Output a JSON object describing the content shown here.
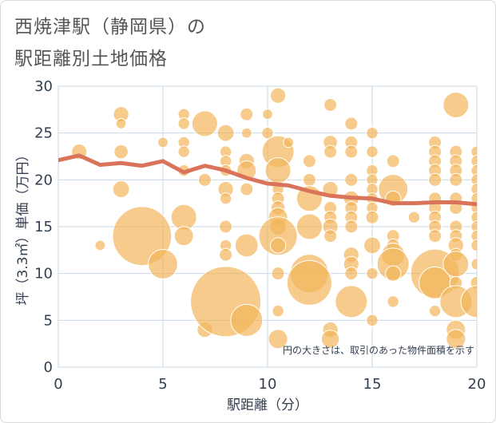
{
  "chart_data": {
    "type": "scatter",
    "title_line1": "西焼津駅（静岡県）の",
    "title_line2": "駅距離別土地価格",
    "xlabel": "駅距離（分）",
    "ylabel": "坪（3.3㎡）単価（万円）",
    "xlim": [
      0,
      20
    ],
    "ylim": [
      0,
      30
    ],
    "xticks": [
      0,
      5,
      10,
      15,
      20
    ],
    "yticks": [
      0,
      5,
      10,
      15,
      20,
      25,
      30
    ],
    "grid": true,
    "annotation": "円の大きさは、取引のあった物件面積を示す",
    "colors": {
      "bubble": "#f2b55a",
      "trend": "#d9735a",
      "grid": "#c9d8e6",
      "axis": "#333f50"
    },
    "points": [
      {
        "x": 1,
        "y": 23,
        "s": 1.2
      },
      {
        "x": 2,
        "y": 13,
        "s": 0.8
      },
      {
        "x": 3,
        "y": 27,
        "s": 1.2
      },
      {
        "x": 3,
        "y": 26,
        "s": 0.8
      },
      {
        "x": 3,
        "y": 23,
        "s": 1.1
      },
      {
        "x": 3,
        "y": 19,
        "s": 1.3
      },
      {
        "x": 4,
        "y": 14,
        "s": 4.6
      },
      {
        "x": 5,
        "y": 24,
        "s": 0.8
      },
      {
        "x": 5,
        "y": 11,
        "s": 2.3
      },
      {
        "x": 6,
        "y": 27,
        "s": 0.9
      },
      {
        "x": 6,
        "y": 26,
        "s": 0.9
      },
      {
        "x": 6,
        "y": 24,
        "s": 0.9
      },
      {
        "x": 6,
        "y": 23,
        "s": 0.9
      },
      {
        "x": 6,
        "y": 21,
        "s": 0.9
      },
      {
        "x": 6,
        "y": 16,
        "s": 2.0
      },
      {
        "x": 6,
        "y": 14,
        "s": 1.5
      },
      {
        "x": 7,
        "y": 26,
        "s": 2.0
      },
      {
        "x": 7,
        "y": 20,
        "s": 1.0
      },
      {
        "x": 7,
        "y": 4,
        "s": 1.2
      },
      {
        "x": 8,
        "y": 25,
        "s": 1.3
      },
      {
        "x": 8,
        "y": 23,
        "s": 0.9
      },
      {
        "x": 8,
        "y": 22,
        "s": 0.9
      },
      {
        "x": 8,
        "y": 21,
        "s": 0.9
      },
      {
        "x": 8,
        "y": 19,
        "s": 1.2
      },
      {
        "x": 8,
        "y": 18,
        "s": 0.9
      },
      {
        "x": 8,
        "y": 15,
        "s": 1.0
      },
      {
        "x": 8,
        "y": 13,
        "s": 0.9
      },
      {
        "x": 8,
        "y": 12,
        "s": 1.0
      },
      {
        "x": 8,
        "y": 7,
        "s": 5.5
      },
      {
        "x": 9,
        "y": 27,
        "s": 1.0
      },
      {
        "x": 9,
        "y": 25,
        "s": 0.8
      },
      {
        "x": 9,
        "y": 22,
        "s": 1.2
      },
      {
        "x": 9,
        "y": 21,
        "s": 1.5
      },
      {
        "x": 9,
        "y": 19,
        "s": 1.0
      },
      {
        "x": 9,
        "y": 13,
        "s": 1.8
      },
      {
        "x": 9,
        "y": 5,
        "s": 2.5
      },
      {
        "x": 10,
        "y": 27,
        "s": 0.8
      },
      {
        "x": 10,
        "y": 25,
        "s": 0.9
      },
      {
        "x": 10.5,
        "y": 29,
        "s": 1.2
      },
      {
        "x": 10.5,
        "y": 23,
        "s": 2.5
      },
      {
        "x": 10.5,
        "y": 21,
        "s": 2.0
      },
      {
        "x": 10.5,
        "y": 19,
        "s": 0.9
      },
      {
        "x": 10.5,
        "y": 18,
        "s": 1.0
      },
      {
        "x": 10.5,
        "y": 17,
        "s": 1.1
      },
      {
        "x": 10.5,
        "y": 16,
        "s": 1.5
      },
      {
        "x": 10.5,
        "y": 15,
        "s": 1.3
      },
      {
        "x": 10.5,
        "y": 14,
        "s": 3.0
      },
      {
        "x": 10.5,
        "y": 13,
        "s": 1.2
      },
      {
        "x": 10.5,
        "y": 10,
        "s": 1.0
      },
      {
        "x": 10.5,
        "y": 6,
        "s": 0.9
      },
      {
        "x": 10.5,
        "y": 3,
        "s": 1.5
      },
      {
        "x": 11,
        "y": 24,
        "s": 0.8
      },
      {
        "x": 12,
        "y": 22,
        "s": 1.0
      },
      {
        "x": 12,
        "y": 20,
        "s": 1.0
      },
      {
        "x": 12,
        "y": 18,
        "s": 2.0
      },
      {
        "x": 12,
        "y": 15,
        "s": 2.0
      },
      {
        "x": 12,
        "y": 10,
        "s": 3.0
      },
      {
        "x": 12,
        "y": 9,
        "s": 3.5
      },
      {
        "x": 13,
        "y": 28,
        "s": 1.0
      },
      {
        "x": 13,
        "y": 24,
        "s": 1.1
      },
      {
        "x": 13,
        "y": 23,
        "s": 1.0
      },
      {
        "x": 13,
        "y": 19,
        "s": 1.2
      },
      {
        "x": 13,
        "y": 17,
        "s": 1.0
      },
      {
        "x": 13,
        "y": 16,
        "s": 1.0
      },
      {
        "x": 13,
        "y": 15,
        "s": 1.2
      },
      {
        "x": 13,
        "y": 14,
        "s": 1.0
      },
      {
        "x": 13,
        "y": 4,
        "s": 1.2
      },
      {
        "x": 13,
        "y": 3,
        "s": 1.4
      },
      {
        "x": 14,
        "y": 26,
        "s": 1.0
      },
      {
        "x": 14,
        "y": 24,
        "s": 1.0
      },
      {
        "x": 14,
        "y": 23,
        "s": 1.0
      },
      {
        "x": 14,
        "y": 20,
        "s": 1.0
      },
      {
        "x": 14,
        "y": 18,
        "s": 1.2
      },
      {
        "x": 14,
        "y": 17,
        "s": 1.0
      },
      {
        "x": 14,
        "y": 16,
        "s": 1.0
      },
      {
        "x": 14,
        "y": 15,
        "s": 1.0
      },
      {
        "x": 14,
        "y": 12,
        "s": 1.2
      },
      {
        "x": 14,
        "y": 11,
        "s": 1.2
      },
      {
        "x": 14,
        "y": 10,
        "s": 1.0
      },
      {
        "x": 14,
        "y": 7,
        "s": 2.5
      },
      {
        "x": 15,
        "y": 25,
        "s": 0.9
      },
      {
        "x": 15,
        "y": 23,
        "s": 0.9
      },
      {
        "x": 15,
        "y": 21,
        "s": 0.9
      },
      {
        "x": 15,
        "y": 20,
        "s": 0.9
      },
      {
        "x": 15,
        "y": 19,
        "s": 0.9
      },
      {
        "x": 15,
        "y": 18,
        "s": 0.9
      },
      {
        "x": 15,
        "y": 17,
        "s": 0.9
      },
      {
        "x": 15,
        "y": 16,
        "s": 1.0
      },
      {
        "x": 15,
        "y": 13,
        "s": 1.3
      },
      {
        "x": 15,
        "y": 10,
        "s": 0.9
      },
      {
        "x": 15,
        "y": 5,
        "s": 0.9
      },
      {
        "x": 16,
        "y": 22,
        "s": 1.0
      },
      {
        "x": 16,
        "y": 19,
        "s": 2.3
      },
      {
        "x": 16,
        "y": 18,
        "s": 1.2
      },
      {
        "x": 16,
        "y": 14,
        "s": 1.0
      },
      {
        "x": 16,
        "y": 13,
        "s": 1.0
      },
      {
        "x": 16,
        "y": 12,
        "s": 1.8
      },
      {
        "x": 16,
        "y": 11,
        "s": 2.5
      },
      {
        "x": 16,
        "y": 10,
        "s": 1.2
      },
      {
        "x": 16,
        "y": 7,
        "s": 0.9
      },
      {
        "x": 17,
        "y": 16,
        "s": 0.9
      },
      {
        "x": 18,
        "y": 24,
        "s": 1.0
      },
      {
        "x": 18,
        "y": 23,
        "s": 1.0
      },
      {
        "x": 18,
        "y": 22,
        "s": 1.0
      },
      {
        "x": 18,
        "y": 21,
        "s": 1.0
      },
      {
        "x": 18,
        "y": 20,
        "s": 1.0
      },
      {
        "x": 18,
        "y": 18,
        "s": 1.0
      },
      {
        "x": 18,
        "y": 17,
        "s": 1.0
      },
      {
        "x": 18,
        "y": 16,
        "s": 1.0
      },
      {
        "x": 18,
        "y": 15,
        "s": 1.0
      },
      {
        "x": 18,
        "y": 14,
        "s": 1.0
      },
      {
        "x": 18,
        "y": 10,
        "s": 3.8
      },
      {
        "x": 18,
        "y": 9,
        "s": 2.5
      },
      {
        "x": 18,
        "y": 6,
        "s": 0.9
      },
      {
        "x": 19,
        "y": 28,
        "s": 2.0
      },
      {
        "x": 19,
        "y": 23,
        "s": 1.0
      },
      {
        "x": 19,
        "y": 22,
        "s": 1.0
      },
      {
        "x": 19,
        "y": 21,
        "s": 1.0
      },
      {
        "x": 19,
        "y": 20,
        "s": 1.0
      },
      {
        "x": 19,
        "y": 18,
        "s": 1.0
      },
      {
        "x": 19,
        "y": 17,
        "s": 1.0
      },
      {
        "x": 19,
        "y": 15,
        "s": 1.0
      },
      {
        "x": 19,
        "y": 14,
        "s": 1.0
      },
      {
        "x": 19,
        "y": 13,
        "s": 1.2
      },
      {
        "x": 19,
        "y": 12,
        "s": 1.0
      },
      {
        "x": 19,
        "y": 11,
        "s": 2.0
      },
      {
        "x": 19,
        "y": 9,
        "s": 1.0
      },
      {
        "x": 19,
        "y": 7,
        "s": 2.5
      },
      {
        "x": 19,
        "y": 4,
        "s": 1.5
      },
      {
        "x": 19,
        "y": 3,
        "s": 1.5
      },
      {
        "x": 20,
        "y": 23,
        "s": 0.9
      },
      {
        "x": 20,
        "y": 22,
        "s": 0.9
      },
      {
        "x": 20,
        "y": 21,
        "s": 0.9
      },
      {
        "x": 20,
        "y": 20,
        "s": 0.9
      },
      {
        "x": 20,
        "y": 19,
        "s": 0.9
      },
      {
        "x": 20,
        "y": 18,
        "s": 0.9
      },
      {
        "x": 20,
        "y": 17,
        "s": 0.9
      },
      {
        "x": 20,
        "y": 16,
        "s": 0.9
      },
      {
        "x": 20,
        "y": 15,
        "s": 0.9
      },
      {
        "x": 20,
        "y": 14,
        "s": 0.9
      },
      {
        "x": 20,
        "y": 13,
        "s": 0.9
      },
      {
        "x": 20,
        "y": 11,
        "s": 0.9
      },
      {
        "x": 20,
        "y": 9,
        "s": 1.0
      },
      {
        "x": 20,
        "y": 7,
        "s": 2.5
      }
    ],
    "trend": {
      "x": [
        0,
        1,
        2,
        3,
        4,
        5,
        6,
        7,
        8,
        9,
        10,
        11,
        12,
        13,
        14,
        15,
        16,
        17,
        18,
        19,
        20
      ],
      "y": [
        22.1,
        22.6,
        21.6,
        21.8,
        21.5,
        22.0,
        20.8,
        21.5,
        21.0,
        20.2,
        19.6,
        19.4,
        18.8,
        18.3,
        18.1,
        18.0,
        17.5,
        17.5,
        17.6,
        17.6,
        17.4
      ]
    }
  }
}
